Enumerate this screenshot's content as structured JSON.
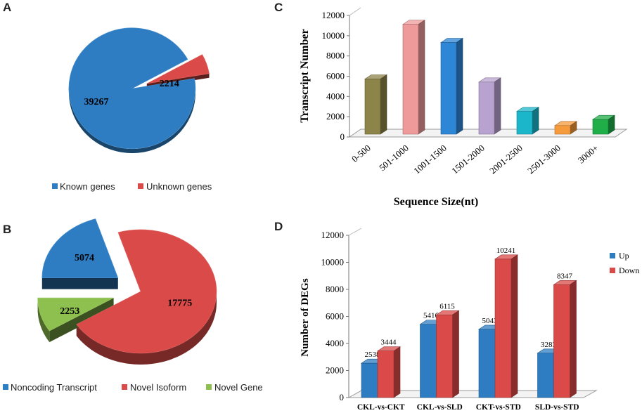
{
  "chart_data": [
    {
      "panel": "A",
      "type": "pie",
      "categories": [
        "Known genes",
        "Unknown genes"
      ],
      "values": [
        39267,
        2214
      ],
      "colors": [
        "#2e7dc3",
        "#d94a48"
      ],
      "legend": "bottom"
    },
    {
      "panel": "B",
      "type": "pie",
      "categories": [
        "Noncoding Transcript",
        "Novel Isoform",
        "Novel Gene"
      ],
      "values": [
        5074,
        17775,
        2253
      ],
      "colors": [
        "#2e7dc3",
        "#d94a48",
        "#8dc04e"
      ],
      "legend": "bottom"
    },
    {
      "panel": "C",
      "type": "bar",
      "categories": [
        "0-500",
        "501-1000",
        "1001-1500",
        "1501-2000",
        "2001-2500",
        "2501-3000",
        "3000+"
      ],
      "values": [
        6000,
        11400,
        9600,
        5700,
        2800,
        1400,
        2000
      ],
      "colors": [
        "#8d8449",
        "#ef9a9a",
        "#2e86d6",
        "#b8a2cf",
        "#1cb6cb",
        "#f59b3c",
        "#1fae48"
      ],
      "xlabel": "Sequence Size(nt)",
      "ylabel": "Transcript  Number",
      "ylim": [
        0,
        12000
      ],
      "yticks": [
        0,
        2000,
        4000,
        6000,
        8000,
        10000,
        12000
      ]
    },
    {
      "panel": "D",
      "type": "bar",
      "categories": [
        "CKL-vs-CKT",
        "CKL-vs-SLD",
        "CKT-vs-STD",
        "SLD-vs-STD"
      ],
      "series": [
        {
          "name": "Up",
          "values": [
            2538,
            5416,
            5043,
            3283
          ],
          "color": "#2e7dc3"
        },
        {
          "name": "Down",
          "values": [
            3444,
            6115,
            10241,
            8347
          ],
          "color": "#d94a48"
        }
      ],
      "xlabel": "",
      "ylabel": "Number of DEGs",
      "ylim": [
        0,
        12000
      ],
      "yticks": [
        0,
        2000,
        4000,
        6000,
        8000,
        10000,
        12000
      ],
      "legend": "top-right"
    }
  ]
}
